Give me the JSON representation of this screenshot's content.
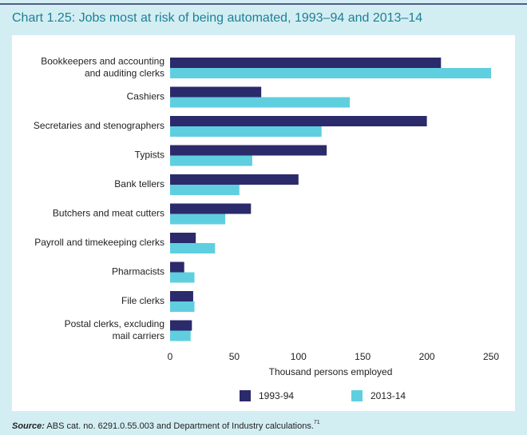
{
  "chart_data": {
    "type": "bar",
    "orientation": "horizontal",
    "title": "Chart 1.25: Jobs most at risk of being automated, 1993–94 and 2013–14",
    "categories": [
      [
        "Bookkeepers and accounting",
        "and auditing clerks"
      ],
      [
        "Cashiers"
      ],
      [
        "Secretaries and stenographers"
      ],
      [
        "Typists"
      ],
      [
        "Bank tellers"
      ],
      [
        "Butchers and meat cutters"
      ],
      [
        "Payroll and timekeeping clerks"
      ],
      [
        "Pharmacists"
      ],
      [
        "File clerks"
      ],
      [
        "Postal clerks, excluding",
        "mail carriers"
      ]
    ],
    "series": [
      {
        "name": "1993-94",
        "color": "#2b2a6b",
        "values": [
          211,
          71,
          200,
          122,
          100,
          63,
          20,
          11,
          18,
          17
        ]
      },
      {
        "name": "2013-14",
        "color": "#5fcfe0",
        "values": [
          250,
          140,
          118,
          64,
          54,
          43,
          35,
          19,
          19,
          16
        ]
      }
    ],
    "xlim": [
      0,
      250
    ],
    "xticks": [
      0,
      50,
      100,
      150,
      200,
      250
    ],
    "xlabel": "Thousand persons employed",
    "source_label": "Source:",
    "source_text": " ABS cat. no. 6291.0.55.003 and Department of Industry calculations.",
    "source_note": "71"
  }
}
